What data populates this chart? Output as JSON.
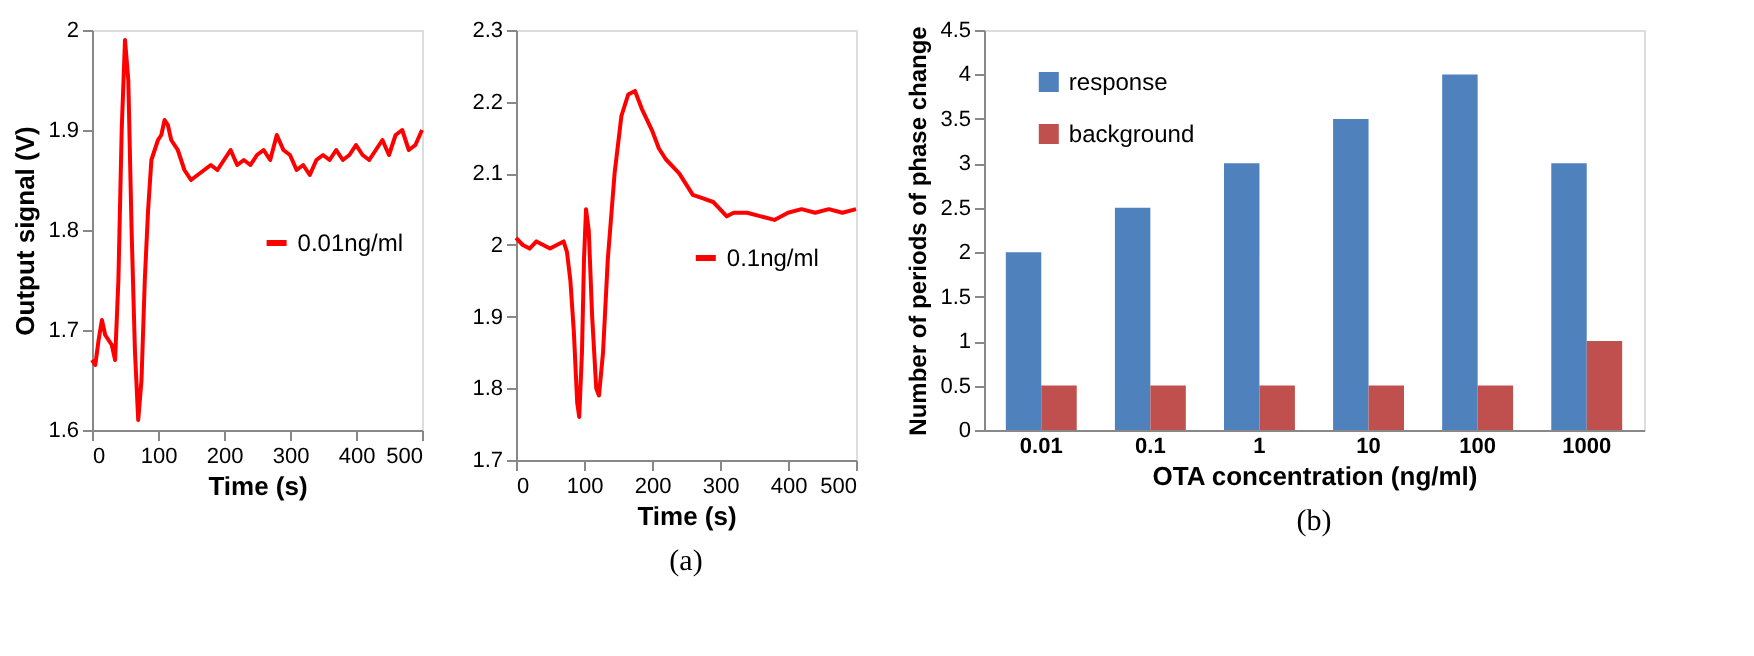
{
  "chart_data": [
    {
      "type": "line",
      "xlabel": "Time (s)",
      "ylabel": "Output signal (V)",
      "xlim": [
        0,
        500
      ],
      "ylim": [
        1.6,
        2
      ],
      "xticks": [
        0,
        100,
        200,
        300,
        400,
        500
      ],
      "yticks": [
        1.6,
        1.7,
        1.8,
        1.9,
        2
      ],
      "legend": "right",
      "grid": false,
      "series": [
        {
          "name": "0.01ng/ml",
          "color": "#ff0000",
          "x": [
            0,
            5,
            10,
            15,
            20,
            25,
            30,
            35,
            40,
            45,
            50,
            55,
            60,
            65,
            70,
            75,
            80,
            85,
            90,
            100,
            105,
            110,
            115,
            120,
            130,
            140,
            150,
            160,
            170,
            180,
            190,
            200,
            210,
            220,
            230,
            240,
            250,
            260,
            270,
            280,
            290,
            300,
            310,
            320,
            330,
            340,
            350,
            360,
            370,
            380,
            390,
            400,
            410,
            420,
            430,
            440,
            450,
            460,
            470,
            480,
            490,
            500
          ],
          "values": [
            1.67,
            1.665,
            1.69,
            1.71,
            1.695,
            1.69,
            1.685,
            1.67,
            1.75,
            1.9,
            1.99,
            1.95,
            1.8,
            1.68,
            1.61,
            1.65,
            1.75,
            1.82,
            1.87,
            1.89,
            1.895,
            1.91,
            1.905,
            1.89,
            1.88,
            1.86,
            1.85,
            1.855,
            1.86,
            1.865,
            1.86,
            1.87,
            1.88,
            1.865,
            1.87,
            1.865,
            1.875,
            1.88,
            1.87,
            1.895,
            1.88,
            1.875,
            1.86,
            1.865,
            1.855,
            1.87,
            1.875,
            1.87,
            1.88,
            1.87,
            1.875,
            1.885,
            1.875,
            1.87,
            1.88,
            1.89,
            1.875,
            1.895,
            1.9,
            1.88,
            1.885,
            1.9
          ]
        }
      ]
    },
    {
      "type": "line",
      "xlabel": "Time (s)",
      "xlim": [
        0,
        500
      ],
      "ylim": [
        1.7,
        2.3
      ],
      "xticks": [
        0,
        100,
        200,
        300,
        400,
        500
      ],
      "yticks": [
        1.7,
        1.8,
        1.9,
        2,
        2.1,
        2.2,
        2.3
      ],
      "legend": "right",
      "grid": false,
      "annotations": [
        "(a)"
      ],
      "series": [
        {
          "name": "0.1ng/ml",
          "color": "#ff0000",
          "x": [
            0,
            10,
            20,
            30,
            40,
            50,
            60,
            70,
            75,
            80,
            85,
            90,
            93,
            97,
            100,
            103,
            107,
            112,
            118,
            122,
            128,
            135,
            145,
            155,
            165,
            175,
            185,
            200,
            210,
            220,
            240,
            250,
            260,
            275,
            290,
            300,
            310,
            320,
            340,
            360,
            380,
            400,
            420,
            440,
            460,
            480,
            500
          ],
          "values": [
            2.01,
            2.0,
            1.995,
            2.005,
            2.0,
            1.995,
            2.0,
            2.005,
            1.99,
            1.95,
            1.88,
            1.78,
            1.76,
            1.85,
            1.98,
            2.05,
            2.02,
            1.9,
            1.8,
            1.79,
            1.85,
            1.98,
            2.1,
            2.18,
            2.21,
            2.215,
            2.19,
            2.16,
            2.135,
            2.12,
            2.1,
            2.085,
            2.07,
            2.065,
            2.06,
            2.05,
            2.04,
            2.045,
            2.045,
            2.04,
            2.035,
            2.045,
            2.05,
            2.045,
            2.05,
            2.045,
            2.05
          ]
        }
      ]
    },
    {
      "type": "bar",
      "xlabel": "OTA concentration (ng/ml)",
      "ylabel": "Number  of periods of phase change",
      "categories": [
        "0.01",
        "0.1",
        "1",
        "10",
        "100",
        "1000"
      ],
      "ylim": [
        0,
        4.5
      ],
      "yticks": [
        0,
        0.5,
        1,
        1.5,
        2,
        2.5,
        3,
        3.5,
        4,
        4.5
      ],
      "legend": "top left",
      "grid": false,
      "annotations": [
        "(b)"
      ],
      "series": [
        {
          "name": "response",
          "color": "#4f81bd",
          "values": [
            2,
            2.5,
            3,
            3.5,
            4,
            3
          ]
        },
        {
          "name": "background",
          "color": "#c0504d",
          "values": [
            0.5,
            0.5,
            0.5,
            0.5,
            0.5,
            1
          ]
        }
      ]
    }
  ]
}
